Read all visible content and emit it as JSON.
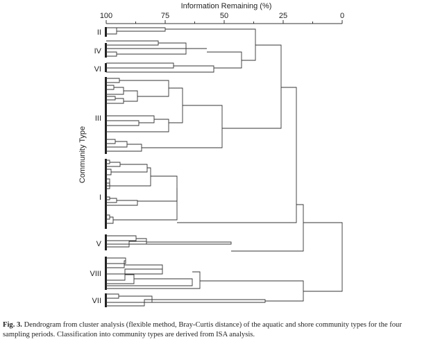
{
  "figure": {
    "axis_title": "Information Remaining (%)",
    "ylabel": "Community Type"
  },
  "chart_data": {
    "type": "dendrogram",
    "xlabel": "Information Remaining (%)",
    "ylabel": "Community Type",
    "x_ticks": [
      100,
      75,
      50,
      25,
      0
    ],
    "xlim": [
      100,
      0
    ],
    "groups": [
      "II",
      "IV",
      "VI",
      "III",
      "I",
      "V",
      "VIII",
      "VII"
    ]
  },
  "caption": {
    "label": "Fig. 3.",
    "text": "Dendrogram from cluster analysis (flexible method, Bray-Curtis distance) of the aquatic and shore community types for the four sampling periods. Classification into community types are derived from ISA analysis."
  }
}
